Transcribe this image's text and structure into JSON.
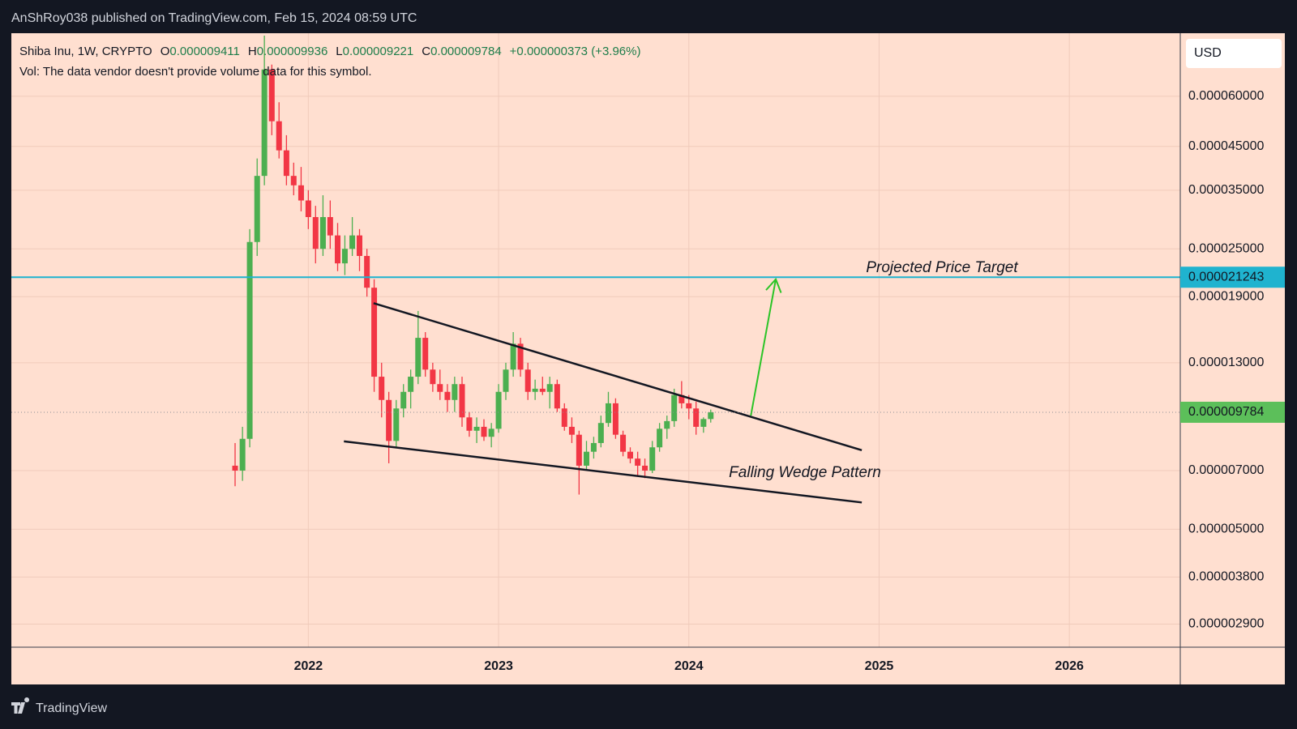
{
  "header": {
    "published": "AnShRoy038 published on TradingView.com, Feb 15, 2024 08:59 UTC"
  },
  "footer": {
    "brand": "TradingView"
  },
  "chart_data": {
    "type": "candlestick",
    "symbol": "Shiba Inu, 1W, CRYPTO",
    "ohlc_legend": [
      {
        "label": "O",
        "value": "0.000009411"
      },
      {
        "label": "H",
        "value": "0.000009936"
      },
      {
        "label": "L",
        "value": "0.000009221"
      },
      {
        "label": "C",
        "value": "0.000009784"
      }
    ],
    "change": "+0.000000373 (+3.96%)",
    "volume_note": "Vol: The data vendor doesn't provide volume data for this symbol.",
    "currency": "USD",
    "log_scale": true,
    "grid": true,
    "up_color": "#4caf50",
    "down_color": "#f23645",
    "x": [
      2021.615,
      2021.654,
      2021.692,
      2021.731,
      2021.769,
      2021.808,
      2021.846,
      2021.885,
      2021.923,
      2021.962,
      2022,
      2022.038,
      2022.077,
      2022.115,
      2022.154,
      2022.192,
      2022.231,
      2022.269,
      2022.308,
      2022.346,
      2022.385,
      2022.423,
      2022.462,
      2022.5,
      2022.538,
      2022.577,
      2022.615,
      2022.654,
      2022.692,
      2022.731,
      2022.769,
      2022.808,
      2022.846,
      2022.885,
      2022.923,
      2022.962,
      2023,
      2023.038,
      2023.077,
      2023.115,
      2023.154,
      2023.192,
      2023.231,
      2023.269,
      2023.308,
      2023.346,
      2023.385,
      2023.423,
      2023.462,
      2023.5,
      2023.538,
      2023.577,
      2023.615,
      2023.654,
      2023.692,
      2023.731,
      2023.769,
      2023.808,
      2023.846,
      2023.885,
      2023.923,
      2023.962,
      2024,
      2024.038,
      2024.077,
      2024.115
    ],
    "open": [
      7.2e-06,
      7e-06,
      8.4e-06,
      2.6e-05,
      3.8e-05,
      7e-05,
      5.2e-05,
      4.4e-05,
      3.8e-05,
      3.6e-05,
      3.3e-05,
      3e-05,
      2.5e-05,
      3e-05,
      2.7e-05,
      2.3e-05,
      2.5e-05,
      2.7e-05,
      2.4e-05,
      2e-05,
      1.2e-05,
      1.05e-05,
      8.3e-06,
      1e-05,
      1.1e-05,
      1.2e-05,
      1.5e-05,
      1.25e-05,
      1.15e-05,
      1.1e-05,
      1.05e-05,
      1.15e-05,
      9.5e-06,
      8.8e-06,
      9e-06,
      8.5e-06,
      8.9e-06,
      1.1e-05,
      1.25e-05,
      1.45e-05,
      1.25e-05,
      1.1e-05,
      1.12e-05,
      1.1e-05,
      1.15e-05,
      1e-05,
      9e-06,
      8.6e-06,
      7.2e-06,
      7.8e-06,
      8.2e-06,
      9.2e-06,
      1.03e-05,
      8.6e-06,
      7.8e-06,
      7.5e-06,
      7.2e-06,
      7e-06,
      8e-06,
      8.9e-06,
      9.3e-06,
      1.08e-05,
      1.03e-05,
      1e-05,
      9e-06,
      9.411e-06
    ],
    "high": [
      8.2e-06,
      9e-06,
      2.8e-05,
      4.2e-05,
      8.5e-05,
      7.2e-05,
      5.8e-05,
      4.8e-05,
      4.1e-05,
      4e-05,
      3.5e-05,
      3.2e-05,
      3.4e-05,
      3.3e-05,
      2.9e-05,
      2.7e-05,
      3e-05,
      2.8e-05,
      2.5e-05,
      2.1e-05,
      1.3e-05,
      1.1e-05,
      1.05e-05,
      1.15e-05,
      1.25e-05,
      1.75e-05,
      1.55e-05,
      1.3e-05,
      1.25e-05,
      1.15e-05,
      1.2e-05,
      1.2e-05,
      9.8e-06,
      9.5e-06,
      9.4e-06,
      9.2e-06,
      1.15e-05,
      1.3e-05,
      1.55e-05,
      1.5e-05,
      1.3e-05,
      1.18e-05,
      1.2e-05,
      1.2e-05,
      1.18e-05,
      1.03e-05,
      9.5e-06,
      8.8e-06,
      8.3e-06,
      8.5e-06,
      9.6e-06,
      1.1e-05,
      1.06e-05,
      8.8e-06,
      8e-06,
      7.8e-06,
      7.5e-06,
      8.3e-06,
      9.2e-06,
      9.6e-06,
      1.12e-05,
      1.17e-05,
      1.08e-05,
      1.04e-05,
      9.5e-06,
      9.936e-06
    ],
    "low": [
      6.4e-06,
      6.6e-06,
      8e-06,
      2.4e-05,
      3.6e-05,
      4.8e-05,
      4.2e-05,
      3.6e-05,
      3.4e-05,
      3.1e-05,
      2.8e-05,
      2.3e-05,
      2.4e-05,
      2.5e-05,
      2.2e-05,
      2.15e-05,
      2.4e-05,
      2.2e-05,
      1.9e-05,
      1.1e-05,
      9.5e-06,
      7.3e-06,
      8e-06,
      9.5e-06,
      1e-05,
      1.15e-05,
      1.2e-05,
      1.1e-05,
      1.05e-05,
      9.8e-06,
      9.8e-06,
      9e-06,
      8.5e-06,
      8.2e-06,
      8.3e-06,
      8e-06,
      8.7e-06,
      1.05e-05,
      1.2e-05,
      1.2e-05,
      1.05e-05,
      1.05e-05,
      1.08e-05,
      1e-05,
      9.8e-06,
      8.8e-06,
      8.2e-06,
      6.1e-06,
      7e-06,
      7.5e-06,
      8e-06,
      9e-06,
      8.4e-06,
      7.6e-06,
      7.3e-06,
      6.8e-06,
      6.7e-06,
      6.9e-06,
      7.8e-06,
      8.4e-06,
      9e-06,
      1e-05,
      9.4e-06,
      8.6e-06,
      8.7e-06,
      9.221e-06
    ],
    "close": [
      7e-06,
      8.4e-06,
      2.6e-05,
      3.8e-05,
      7e-05,
      5.2e-05,
      4.4e-05,
      3.8e-05,
      3.6e-05,
      3.3e-05,
      3e-05,
      2.5e-05,
      3e-05,
      2.7e-05,
      2.3e-05,
      2.5e-05,
      2.7e-05,
      2.4e-05,
      2e-05,
      1.2e-05,
      1.05e-05,
      8.3e-06,
      1e-05,
      1.1e-05,
      1.2e-05,
      1.5e-05,
      1.25e-05,
      1.15e-05,
      1.1e-05,
      1.05e-05,
      1.15e-05,
      9.5e-06,
      8.8e-06,
      9e-06,
      8.5e-06,
      8.9e-06,
      1.1e-05,
      1.25e-05,
      1.45e-05,
      1.25e-05,
      1.1e-05,
      1.12e-05,
      1.1e-05,
      1.15e-05,
      1e-05,
      9e-06,
      8.6e-06,
      7.2e-06,
      7.8e-06,
      8.2e-06,
      9.2e-06,
      1.03e-05,
      8.6e-06,
      7.8e-06,
      7.5e-06,
      7.2e-06,
      7e-06,
      8e-06,
      8.9e-06,
      9.3e-06,
      1.08e-05,
      1.03e-05,
      1e-05,
      9e-06,
      9.411e-06,
      9.784e-06
    ],
    "xlim": [
      2020.439,
      2026.583
    ],
    "xticks": [
      2022,
      2023,
      2024,
      2025,
      2026
    ],
    "ylim": [
      2.54e-06,
      8.62e-05
    ],
    "yticks": [
      {
        "value": 6e-05,
        "label": "0.000060000"
      },
      {
        "value": 4.5e-05,
        "label": "0.000045000"
      },
      {
        "value": 3.5e-05,
        "label": "0.000035000"
      },
      {
        "value": 2.5e-05,
        "label": "0.000025000"
      },
      {
        "value": 1.9e-05,
        "label": "0.000019000"
      },
      {
        "value": 1.3e-05,
        "label": "0.000013000"
      },
      {
        "value": 7e-06,
        "label": "0.000007000"
      },
      {
        "value": 5e-06,
        "label": "0.000005000"
      },
      {
        "value": 3.8e-06,
        "label": "0.000003800"
      },
      {
        "value": 2.9e-06,
        "label": "0.000002900"
      }
    ],
    "horizontal_line": {
      "value": 2.1243e-05,
      "label": "0.000021243",
      "color": "#1fb3cf"
    },
    "last_price": {
      "value": 9.784e-06,
      "label": "0.000009784",
      "color": "#5cbf5a"
    },
    "trendlines": [
      {
        "x": [
          2022.343,
          2024.909
        ],
        "y": [
          1.83e-05,
          7.87e-06
        ],
        "color": "#131722"
      },
      {
        "x": [
          2022.187,
          2024.909
        ],
        "y": [
          8.28e-06,
          5.83e-06
        ],
        "color": "#131722"
      }
    ],
    "arrow": {
      "x": [
        2024.326,
        2024.457
      ],
      "y": [
        9.6e-06,
        2.1e-05
      ],
      "color": "#2bc427"
    },
    "annotations": [
      {
        "text": "Projected Price Target"
      },
      {
        "text": "Falling Wedge Pattern"
      }
    ]
  }
}
